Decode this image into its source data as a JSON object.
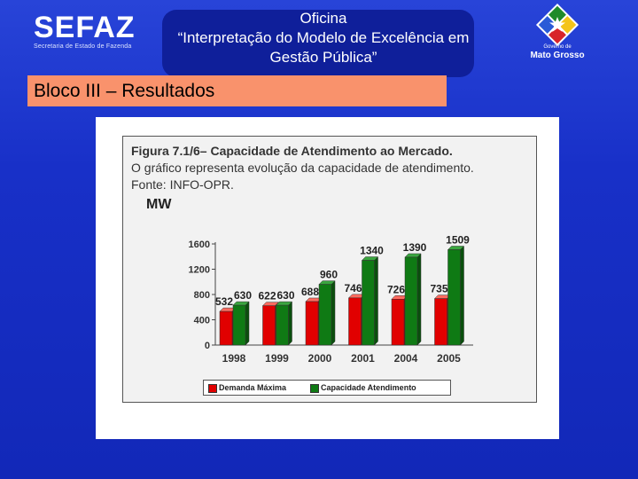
{
  "header": {
    "logo_left": "SEFAZ",
    "logo_left_sub": "Secretaria de Estado de Fazenda",
    "title_lines": [
      "Oficina",
      "“Interpretação do Modelo de Excelência  em",
      "Gestão Pública”"
    ],
    "logo_right_line1": "Governo de",
    "logo_right_line2": "Mato Grosso"
  },
  "section": {
    "label": "Bloco III –  Resultados"
  },
  "colors": {
    "background": "#1a31c9",
    "section_bar": "#f9926c",
    "series_red": "#e10000",
    "series_green": "#0f7a14"
  },
  "figure": {
    "title": "Figura 7.1/6– Capacidade de Atendimento ao Mercado.",
    "line1": "O gráfico representa evolução da capacidade de atendimento.",
    "line2": "Fonte: INFO-OPR.",
    "unit": "MW"
  },
  "chart_data": {
    "type": "bar",
    "categories": [
      "1998",
      "1999",
      "2000",
      "2001",
      "2004",
      "2005"
    ],
    "series": [
      {
        "name": "Demanda Máxima",
        "values": [
          532,
          622,
          688,
          746,
          726,
          735
        ]
      },
      {
        "name": "Capacidade Atendimento",
        "values": [
          630,
          630,
          960,
          1340,
          1390,
          1509
        ]
      }
    ],
    "ylabel": "MW",
    "ylim": [
      0,
      1600
    ],
    "yticks": [
      0,
      400,
      800,
      1200,
      1600
    ],
    "grid": false,
    "legend": "bottom"
  }
}
